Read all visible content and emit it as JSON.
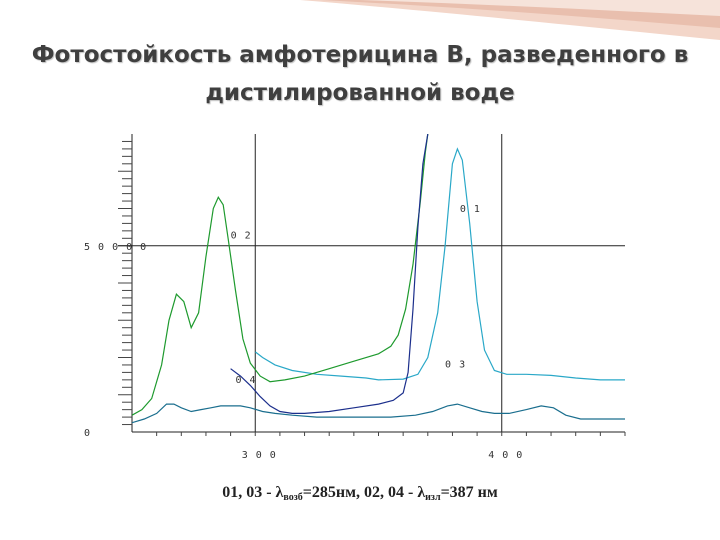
{
  "slide": {
    "title_line1": "Фотостойкость амфотерицина В, разведенного в",
    "title_line2": "дистилированной воде"
  },
  "caption": {
    "part1": "01, 03 - λ",
    "sub1": "возб",
    "part2": "=285нм, 02, 04 - λ",
    "sub2": "изл",
    "part3": "=387 нм"
  },
  "chart_data": {
    "type": "line",
    "xlim": [
      250,
      450
    ],
    "ylim": [
      0,
      80000
    ],
    "x_ticks": [
      {
        "value": 300,
        "label": "3 0 0"
      },
      {
        "value": 400,
        "label": "4 0 0"
      }
    ],
    "y_ticks": [
      {
        "value": 0,
        "label": "0"
      },
      {
        "value": 50000,
        "label": "5 0 0 0 0"
      }
    ],
    "grid": true,
    "colors": {
      "01": "#2aa8c8",
      "02": "#1e9a2e",
      "03": "#1a6e8e",
      "04": "#1c2f8c"
    },
    "series": [
      {
        "name": "0 1",
        "label_at": [
          383,
          59000
        ],
        "points": [
          [
            300,
            21500
          ],
          [
            303,
            20000
          ],
          [
            308,
            18000
          ],
          [
            315,
            16500
          ],
          [
            325,
            15500
          ],
          [
            335,
            15000
          ],
          [
            345,
            14500
          ],
          [
            350,
            14000
          ],
          [
            360,
            14200
          ],
          [
            366,
            15500
          ],
          [
            370,
            20000
          ],
          [
            374,
            32000
          ],
          [
            377,
            50000
          ],
          [
            380,
            72000
          ],
          [
            382,
            76000
          ],
          [
            384,
            73000
          ],
          [
            387,
            56000
          ],
          [
            390,
            35000
          ],
          [
            393,
            22000
          ],
          [
            397,
            16500
          ],
          [
            402,
            15500
          ],
          [
            410,
            15500
          ],
          [
            420,
            15200
          ],
          [
            430,
            14500
          ],
          [
            440,
            14000
          ],
          [
            450,
            14000
          ]
        ]
      },
      {
        "name": "0 2",
        "label_at": [
          290,
          52000
        ],
        "points": [
          [
            250,
            4500
          ],
          [
            254,
            6000
          ],
          [
            258,
            9000
          ],
          [
            262,
            18000
          ],
          [
            265,
            30000
          ],
          [
            268,
            37000
          ],
          [
            271,
            35000
          ],
          [
            274,
            28000
          ],
          [
            277,
            32000
          ],
          [
            280,
            47000
          ],
          [
            283,
            60000
          ],
          [
            285,
            63000
          ],
          [
            287,
            61000
          ],
          [
            289,
            52000
          ],
          [
            292,
            38000
          ],
          [
            295,
            25000
          ],
          [
            298,
            18500
          ],
          [
            302,
            15000
          ],
          [
            306,
            13500
          ],
          [
            312,
            14000
          ],
          [
            320,
            15000
          ],
          [
            330,
            17000
          ],
          [
            340,
            19000
          ],
          [
            350,
            21000
          ],
          [
            355,
            23000
          ],
          [
            358,
            26000
          ],
          [
            361,
            33000
          ],
          [
            364,
            45000
          ],
          [
            367,
            62000
          ],
          [
            369,
            75000
          ],
          [
            370,
            80000
          ]
        ]
      },
      {
        "name": "0 3",
        "label_at": [
          377,
          17300
        ],
        "points": [
          [
            250,
            2500
          ],
          [
            255,
            3500
          ],
          [
            260,
            5000
          ],
          [
            264,
            7500
          ],
          [
            267,
            7500
          ],
          [
            270,
            6500
          ],
          [
            274,
            5500
          ],
          [
            278,
            6000
          ],
          [
            282,
            6500
          ],
          [
            286,
            7000
          ],
          [
            290,
            7000
          ],
          [
            294,
            7000
          ],
          [
            298,
            6500
          ],
          [
            303,
            5500
          ],
          [
            308,
            5000
          ],
          [
            315,
            4500
          ],
          [
            325,
            4000
          ],
          [
            335,
            4000
          ],
          [
            345,
            4000
          ],
          [
            355,
            4000
          ],
          [
            365,
            4500
          ],
          [
            372,
            5500
          ],
          [
            378,
            7000
          ],
          [
            382,
            7500
          ],
          [
            387,
            6500
          ],
          [
            392,
            5500
          ],
          [
            397,
            5000
          ],
          [
            403,
            5000
          ],
          [
            410,
            6000
          ],
          [
            416,
            7000
          ],
          [
            421,
            6500
          ],
          [
            426,
            4500
          ],
          [
            432,
            3500
          ],
          [
            440,
            3500
          ],
          [
            450,
            3500
          ]
        ]
      },
      {
        "name": "0 4",
        "label_at": [
          292,
          13200
        ],
        "points": [
          [
            290,
            17000
          ],
          [
            294,
            15000
          ],
          [
            298,
            12500
          ],
          [
            302,
            9500
          ],
          [
            306,
            7000
          ],
          [
            310,
            5500
          ],
          [
            315,
            5000
          ],
          [
            320,
            5000
          ],
          [
            330,
            5500
          ],
          [
            340,
            6500
          ],
          [
            350,
            7500
          ],
          [
            356,
            8500
          ],
          [
            360,
            10500
          ],
          [
            362,
            16000
          ],
          [
            364,
            33000
          ],
          [
            366,
            55000
          ],
          [
            368,
            72000
          ],
          [
            370,
            80000
          ]
        ]
      }
    ]
  }
}
